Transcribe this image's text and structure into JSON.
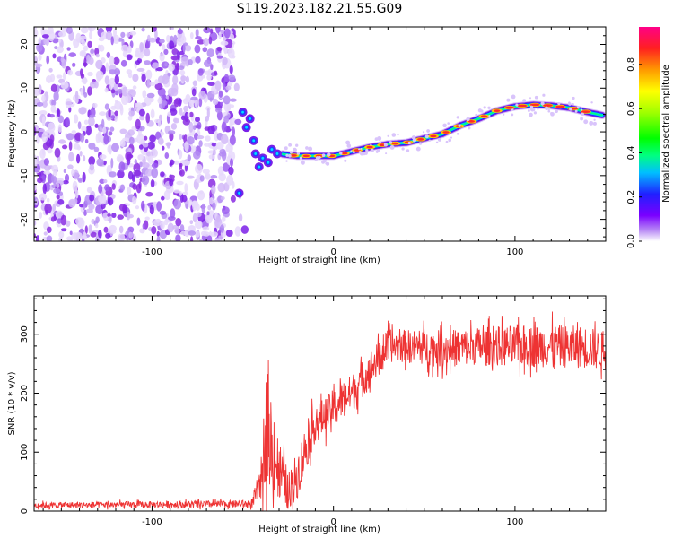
{
  "title": "S119.2023.182.21.55.G09",
  "chart_data": [
    {
      "type": "heatmap",
      "xlabel": "Height of straight line (km)",
      "ylabel": "Frequency (Hz)",
      "xlim": [
        -165,
        150
      ],
      "ylim": [
        -25,
        24
      ],
      "xticks": [
        -100,
        0,
        100
      ],
      "yticks": [
        -20,
        -10,
        0,
        10,
        20
      ],
      "colorbar": {
        "label": "Normalized spectral amplitude",
        "range": [
          0,
          0.97
        ],
        "ticks": [
          0.0,
          0.2,
          0.4,
          0.6,
          0.8
        ]
      },
      "ridge": {
        "description_points_x": [
          -50,
          -45,
          -40,
          -35,
          -30,
          -20,
          -10,
          0,
          10,
          20,
          30,
          40,
          50,
          60,
          70,
          80,
          90,
          100,
          110,
          120,
          130,
          140,
          148
        ],
        "frequency_hz": [
          4,
          2,
          -3,
          -7,
          -5,
          -5.5,
          -5.5,
          -5.5,
          -4.5,
          -3.5,
          -2.8,
          -2.5,
          -1.5,
          -0.5,
          1.5,
          3,
          4.8,
          5.8,
          6.2,
          6.0,
          5.5,
          4.5,
          3.8
        ]
      },
      "noise_region_x": [
        -165,
        -55
      ]
    },
    {
      "type": "line",
      "xlabel": "Height of straight line (km)",
      "ylabel": "SNR (10 * v/v)",
      "xlim": [
        -165,
        150
      ],
      "ylim": [
        0,
        365
      ],
      "xticks": [
        -100,
        0,
        100
      ],
      "yticks": [
        0,
        100,
        200,
        300
      ],
      "series": [
        {
          "color": "#ee3333",
          "envelope_x": [
            -165,
            -45,
            -40,
            -37,
            -35,
            -30,
            -25,
            -20,
            -15,
            -10,
            -5,
            0,
            5,
            10,
            15,
            20,
            25,
            30,
            40,
            60,
            80,
            100,
            120,
            140,
            150
          ],
          "envelope_mean": [
            10,
            12,
            50,
            150,
            110,
            70,
            35,
            60,
            110,
            150,
            160,
            175,
            190,
            200,
            220,
            240,
            260,
            280,
            280,
            275,
            280,
            280,
            280,
            278,
            270
          ],
          "envelope_spread": [
            6,
            8,
            40,
            120,
            90,
            70,
            40,
            50,
            50,
            40,
            40,
            40,
            40,
            40,
            40,
            40,
            35,
            35,
            35,
            40,
            40,
            45,
            45,
            45,
            40
          ]
        }
      ]
    }
  ]
}
